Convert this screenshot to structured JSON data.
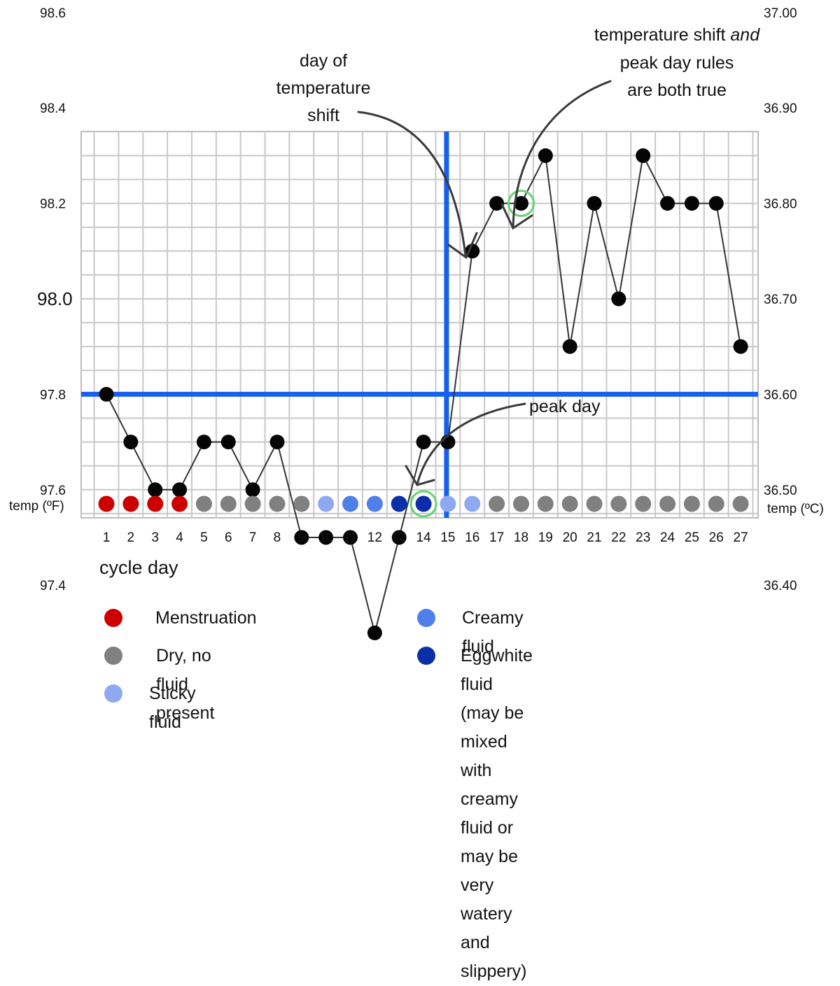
{
  "chart_data": {
    "type": "line",
    "x_label": "cycle day",
    "y_label_left": "temp (ºF)",
    "y_label_right": "temp (ºC)",
    "x": [
      1,
      2,
      3,
      4,
      5,
      6,
      7,
      8,
      9,
      10,
      11,
      12,
      13,
      14,
      15,
      16,
      17,
      18,
      19,
      20,
      21,
      22,
      23,
      24,
      25,
      26,
      27
    ],
    "ylim_f": [
      97.2,
      98.7
    ],
    "y_ticks_f": [
      "98.6",
      "98.4",
      "98.2",
      "98.0",
      "97.8",
      "97.6",
      "97.4"
    ],
    "y_ticks_c": [
      "37.00",
      "36.90",
      "36.80",
      "36.70",
      "36.60",
      "36.50",
      "36.40"
    ],
    "y_ticks_c_values": [
      37.0,
      36.9,
      36.8,
      36.7,
      36.6,
      36.5,
      36.4
    ],
    "series": [
      {
        "values": [
          97.8,
          97.7,
          97.6,
          97.6,
          97.7,
          97.7,
          97.6,
          97.7,
          97.5,
          97.5,
          97.5,
          97.3,
          97.5,
          97.7,
          97.7,
          98.1,
          98.2,
          98.2,
          98.3,
          97.9,
          98.2,
          98.0,
          98.3,
          98.2,
          98.2,
          98.2,
          97.9
        ]
      }
    ],
    "fluid_markers": [
      "menstruation",
      "menstruation",
      "menstruation",
      "menstruation",
      "dry",
      "dry",
      "dry",
      "dry",
      "dry",
      "sticky",
      "creamy",
      "creamy",
      "eggwhite",
      "eggwhite",
      "sticky",
      "sticky",
      "dry",
      "dry",
      "dry",
      "dry",
      "dry",
      "dry",
      "dry",
      "dry",
      "dry",
      "dry",
      "dry"
    ],
    "cover_line_f": 97.8,
    "shift_line_day": 15,
    "circled_points": [
      14,
      18
    ],
    "annotations": [
      {
        "text": "day of\ntemperature\nshift"
      },
      {
        "text": "temperature shift",
        "italic_suffix": "and",
        "rest": "peak day rules\nare both true"
      },
      {
        "text": "peak day"
      }
    ],
    "grid": true,
    "colors": {
      "menstruation": "#cc0000",
      "dry": "#808080",
      "sticky": "#8fa9f0",
      "creamy": "#4f7fe8",
      "eggwhite": "#0b2fa8",
      "line_blue": "#1560ee",
      "circle_green": "#66d36e",
      "grid": "#c8c8c8"
    },
    "legend": [
      {
        "key": "menstruation",
        "label": "Menstruation"
      },
      {
        "key": "dry",
        "label": "Dry, no fluid present"
      },
      {
        "key": "sticky",
        "label": "Sticky fluid"
      },
      {
        "key": "creamy",
        "label": "Creamy fluid"
      },
      {
        "key": "eggwhite",
        "label": "Eggwhite fluid (may be mixed with\ncreamy fluid or may be very watery\nand slippery)"
      }
    ]
  }
}
